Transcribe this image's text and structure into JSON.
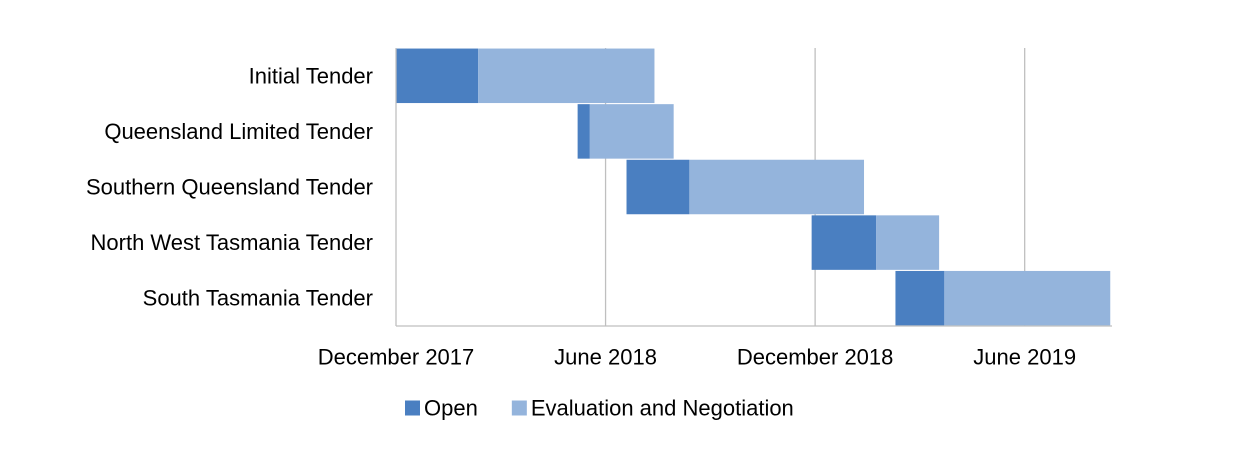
{
  "chart_data": {
    "type": "bar",
    "subtype": "gantt",
    "title": "",
    "xlabel": "",
    "ylabel": "",
    "x_axis": {
      "unit": "months since December 2017",
      "range": [
        0,
        20.5
      ],
      "ticks": [
        {
          "value": 0,
          "label": "December 2017"
        },
        {
          "value": 6,
          "label": "June 2018"
        },
        {
          "value": 12,
          "label": "December 2018"
        },
        {
          "value": 18,
          "label": "June 2019"
        }
      ],
      "gridlines": true
    },
    "categories": [
      "Initial Tender",
      "Queensland Limited Tender",
      "Southern Queensland Tender",
      "North West Tasmania Tender",
      "South Tasmania Tender"
    ],
    "series": [
      {
        "name": "Open",
        "color": "#4a7fc1",
        "start": [
          0,
          5.2,
          6.6,
          11.9,
          14.3
        ],
        "end": [
          2.35,
          5.55,
          8.4,
          13.75,
          15.7
        ]
      },
      {
        "name": "Evaluation and Negotiation",
        "color": "#94b4dc",
        "start": [
          2.35,
          5.55,
          8.4,
          13.75,
          15.7
        ],
        "end": [
          7.4,
          7.95,
          13.4,
          15.55,
          20.45
        ]
      }
    ],
    "legend": {
      "position": "bottom",
      "items": [
        "Open",
        "Evaluation and Negotiation"
      ]
    }
  }
}
